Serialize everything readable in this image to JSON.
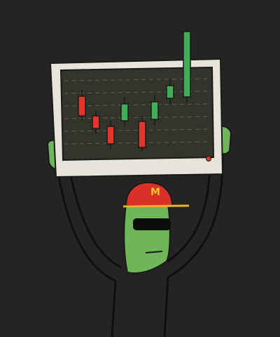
{
  "cap": {
    "letter": "M"
  }
}
